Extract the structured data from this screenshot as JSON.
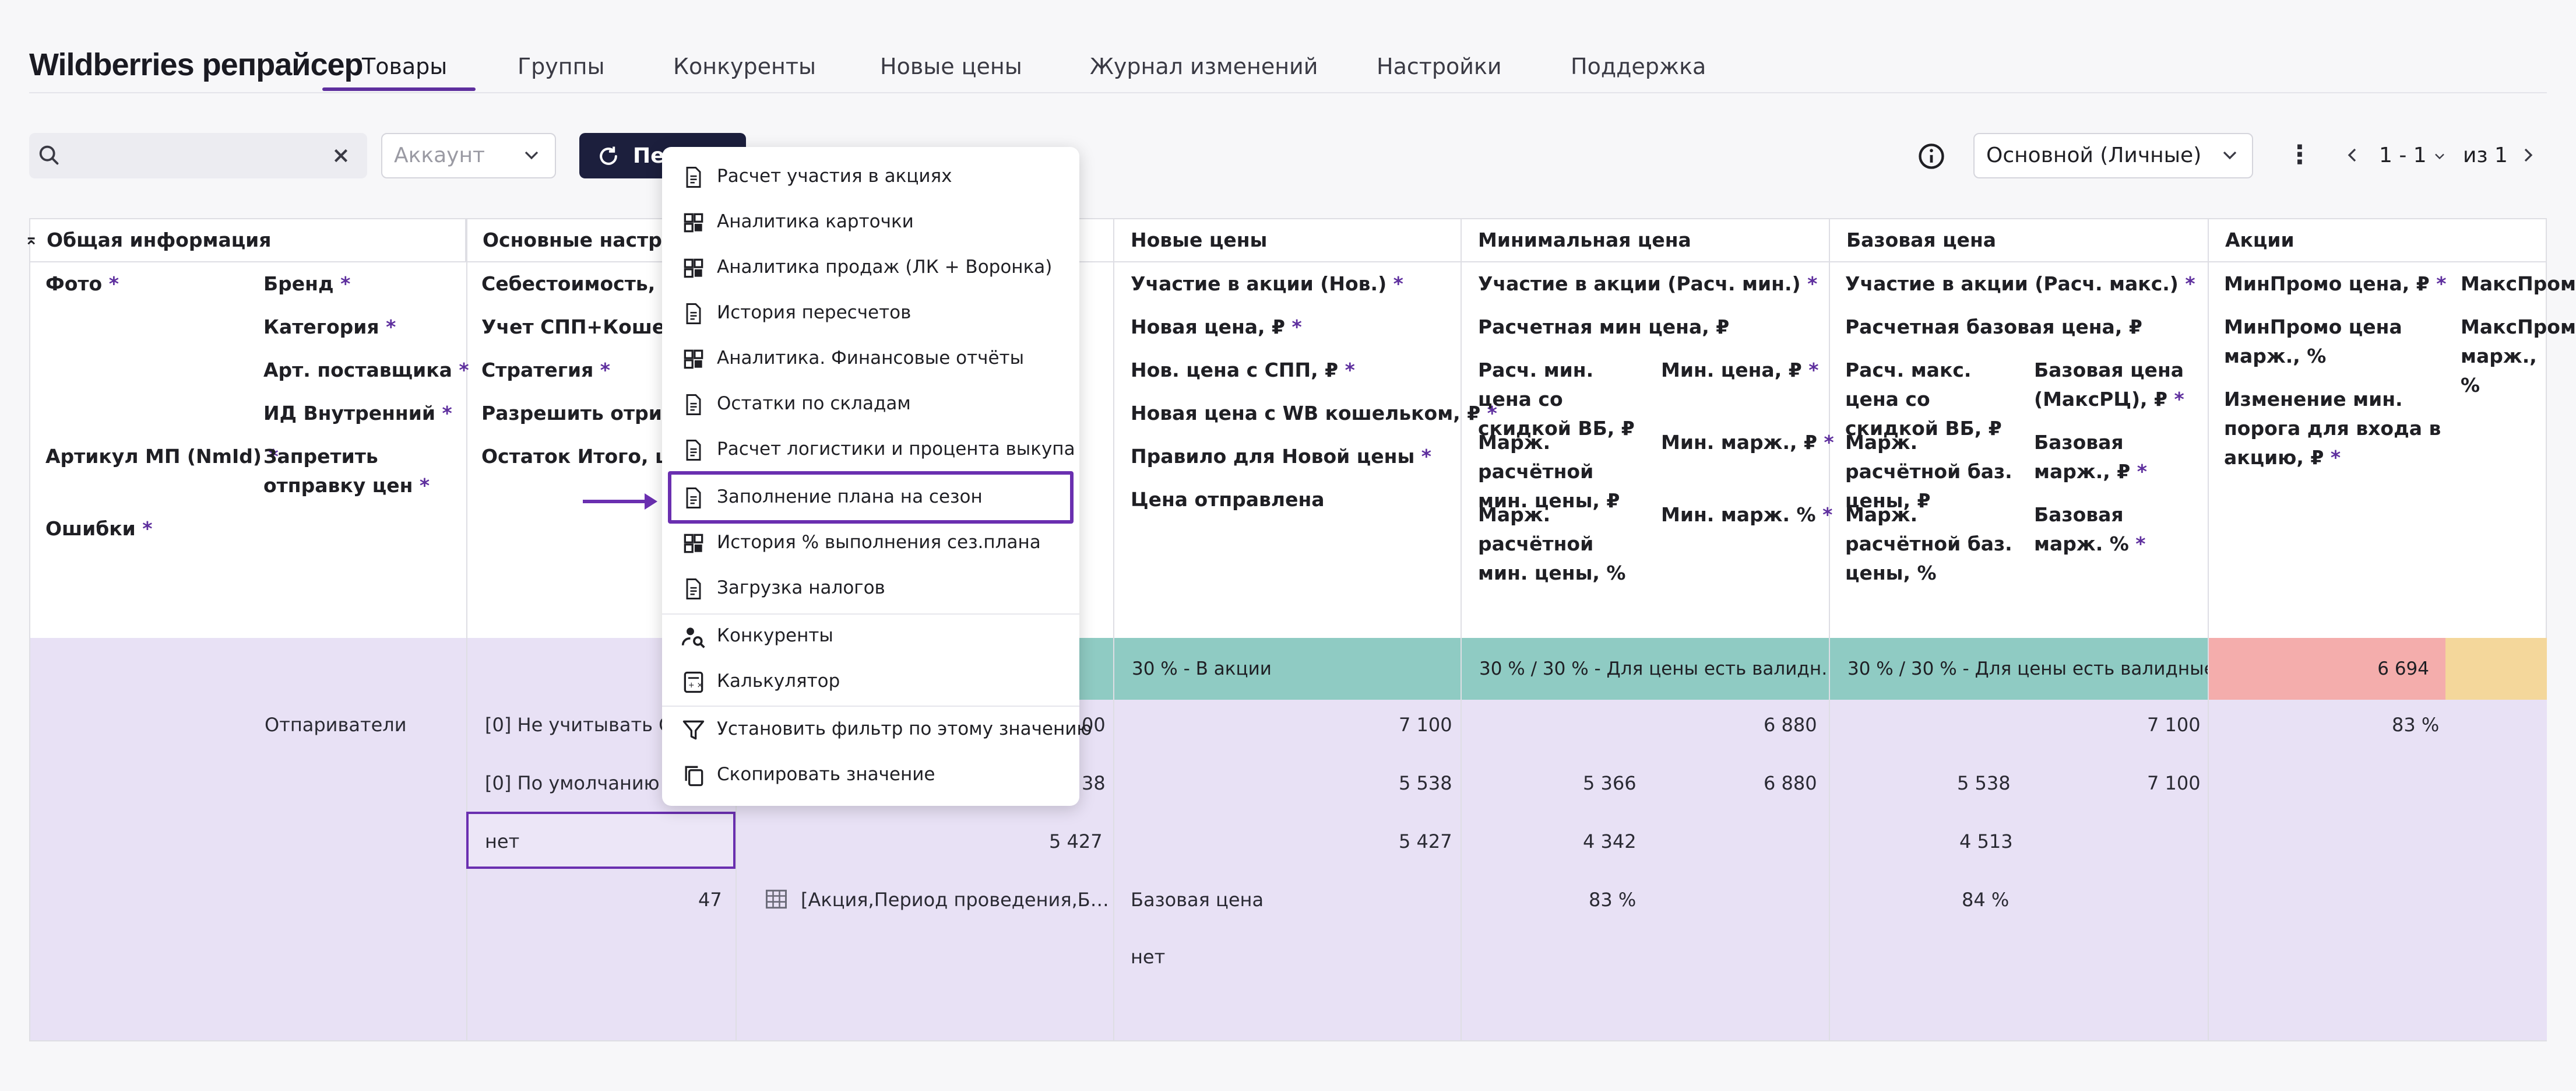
{
  "app": {
    "title": "Wildberries репрайсер"
  },
  "nav": {
    "tabs": [
      "Товары",
      "Группы",
      "Конкуренты",
      "Новые цены",
      "Журнал изменений",
      "Настройки",
      "Поддержка"
    ]
  },
  "toolbar": {
    "search_value": "",
    "account_placeholder": "Аккаунт",
    "recalc_label": "Пе",
    "profile_value": "Основной (Личные)",
    "pagination": {
      "range": "1 - 1",
      "of": "из 1"
    }
  },
  "groups": [
    "Общая информация",
    "Основные настройки",
    "Новые цены",
    "Минимальная цена",
    "Базовая цена",
    "Акции"
  ],
  "headers": {
    "general": {
      "photo": "Фото",
      "brand": "Бренд",
      "category": "Категория",
      "art_supplier": "Арт. поставщика",
      "internal_id": "ИД Внутренний",
      "article_mp": "Артикул МП (NmId)",
      "forbid_send": "Запретить отправку цен",
      "errors": "Ошибки"
    },
    "main": {
      "cost": "Себестоимость, ₽",
      "spp": "Учет СПП+Кошелек",
      "strategy": "Стратегия",
      "allow_neg": "Разрешить отриц мар",
      "stock": "Остаток Итого, шт"
    },
    "new_prices": {
      "participation": "Участие в акции (Нов.)",
      "new_price": "Новая цена, ₽",
      "new_price_spp": "Нов. цена с СПП, ₽",
      "new_price_wb": "Новая цена с WB кошельком, ₽",
      "rule": "Правило для Новой цены",
      "price_sent": "Цена отправлена"
    },
    "min_price": {
      "participation": "Участие в акции (Расч. мин.)",
      "calc_min": "Расчетная мин цена, ₽",
      "calc_min_discount": "Расч. мин. цена со скидкой ВБ, ₽",
      "min_price": "Мин. цена, ₽",
      "margin_calc": "Марж. расчётной мин. цены, ₽",
      "min_margin": "Мин. марж., ₽",
      "margin_calc_pct": "Марж. расчётной мин. цены, %",
      "min_margin_pct": "Мин. марж. %"
    },
    "base_price": {
      "participation": "Участие в акции (Расч. макс.)",
      "calc_base": "Расчетная базовая цена, ₽",
      "calc_max_discount": "Расч. макс. цена со скидкой ВБ, ₽",
      "base_max": "Базовая цена (МаксРЦ), ₽",
      "margin_base": "Марж. расчётной баз. цены, ₽",
      "base_margin": "Базовая марж., ₽",
      "margin_base_pct": "Марж. расчётной баз. цены, %",
      "base_margin_pct": "Базовая марж. %"
    },
    "promo": {
      "minpromo": "МинПромо цена, ₽",
      "minpromo_margin": "МинПромо цена марж., %",
      "change_threshold": "Изменение мин. порога для входа в акцию, ₽",
      "maxpromo": "МаксПром",
      "maxpromo_margin": "МаксПром марж., %"
    }
  },
  "row": {
    "brand_val": "Отпариватели",
    "spp_val": "[0] Не учитывать СПП",
    "strategy_val": "[0] По умолчанию",
    "allow_neg_val": "нет",
    "stock_val": "47",
    "cost_partial": "00",
    "spp_partial": "38",
    "new_mid_5427": "5 427",
    "promo_link": "[Акция,Период проведения,Б…",
    "new_status": "30 % - В акции",
    "new_7100": "7 100",
    "new_5538": "5 538",
    "new_5427": "5 427",
    "new_rule": "Базовая цена",
    "new_sent": "нет",
    "min_status": "30 % / 30 % - Для цены есть валидн…",
    "min_6880a": "6 880",
    "min_5366": "5 366",
    "min_6880b": "6 880",
    "min_4342": "4 342",
    "min_83": "83 %",
    "base_status": "30 % / 30 % - Для цены есть валидные…",
    "base_7100a": "7 100",
    "base_5538": "5 538",
    "base_7100b": "7 100",
    "base_4513": "4 513",
    "base_84": "84 %",
    "promo_6694": "6 694",
    "promo_83": "83 %"
  },
  "menu": {
    "items": [
      "Расчет участия в акциях",
      "Аналитика карточки",
      "Аналитика продаж (ЛК + Воронка)",
      "История пересчетов",
      "Аналитика. Финансовые отчёты",
      "Остатки по складам",
      "Расчет логистики и процента выкупа",
      "Заполнение плана на сезон",
      "История % выполнения сез.плана",
      "Загрузка налогов",
      "Конкуренты",
      "Калькулятор",
      "Установить фильтр по этому значению",
      "Скопировать значение"
    ]
  },
  "colors": {
    "accent": "#5e2f9e",
    "row_bg": "#e8e1f5",
    "teal": "#8fcbc3",
    "pink": "#f4adac",
    "peach": "#f4d79b",
    "dark_btn": "#1c1f3d"
  }
}
